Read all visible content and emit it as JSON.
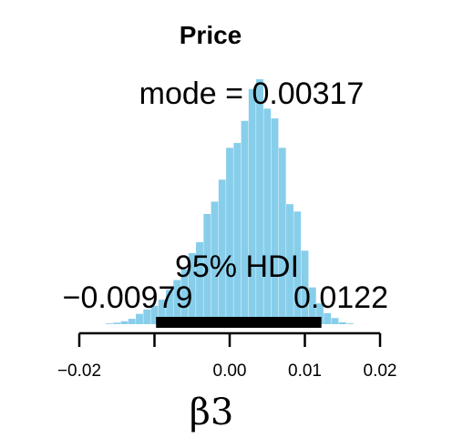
{
  "chart_data": {
    "type": "bar",
    "title": "Price",
    "mode_label": "mode = 0.00317",
    "hdi_label": "95% HDI",
    "hdi": {
      "low": -0.00979,
      "high": 0.0122,
      "low_label": "−0.00979",
      "high_label": "0.0122"
    },
    "xlabel": "β3",
    "xlim": [
      -0.02,
      0.02
    ],
    "ticks": [
      {
        "value": -0.02,
        "label": "−0.02"
      },
      {
        "value": -0.01,
        "label": ""
      },
      {
        "value": 0.0,
        "label": "0.00"
      },
      {
        "value": 0.01,
        "label": "0.01"
      },
      {
        "value": 0.02,
        "label": "0.02"
      }
    ],
    "bar_width": 0.00095,
    "bar_color": "#87ceeb",
    "hdi_color": "#000000",
    "bins": [
      {
        "x": -0.016,
        "h": 0.003
      },
      {
        "x": -0.015,
        "h": 0.006
      },
      {
        "x": -0.014,
        "h": 0.012
      },
      {
        "x": -0.013,
        "h": 0.022
      },
      {
        "x": -0.012,
        "h": 0.042
      },
      {
        "x": -0.011,
        "h": 0.06
      },
      {
        "x": -0.01,
        "h": 0.075
      },
      {
        "x": -0.009,
        "h": 0.1
      },
      {
        "x": -0.008,
        "h": 0.14
      },
      {
        "x": -0.007,
        "h": 0.18
      },
      {
        "x": -0.006,
        "h": 0.225
      },
      {
        "x": -0.005,
        "h": 0.29
      },
      {
        "x": -0.004,
        "h": 0.335
      },
      {
        "x": -0.003,
        "h": 0.45
      },
      {
        "x": -0.002,
        "h": 0.5
      },
      {
        "x": -0.001,
        "h": 0.59
      },
      {
        "x": 0.0,
        "h": 0.72
      },
      {
        "x": 0.001,
        "h": 0.74
      },
      {
        "x": 0.002,
        "h": 0.83
      },
      {
        "x": 0.003,
        "h": 0.96
      },
      {
        "x": 0.004,
        "h": 1.0
      },
      {
        "x": 0.005,
        "h": 0.88
      },
      {
        "x": 0.006,
        "h": 0.84
      },
      {
        "x": 0.007,
        "h": 0.72
      },
      {
        "x": 0.008,
        "h": 0.49
      },
      {
        "x": 0.009,
        "h": 0.46
      },
      {
        "x": 0.01,
        "h": 0.3
      },
      {
        "x": 0.011,
        "h": 0.15
      },
      {
        "x": 0.012,
        "h": 0.085
      },
      {
        "x": 0.013,
        "h": 0.045
      },
      {
        "x": 0.014,
        "h": 0.025
      },
      {
        "x": 0.015,
        "h": 0.008
      },
      {
        "x": 0.016,
        "h": 0.003
      }
    ]
  }
}
